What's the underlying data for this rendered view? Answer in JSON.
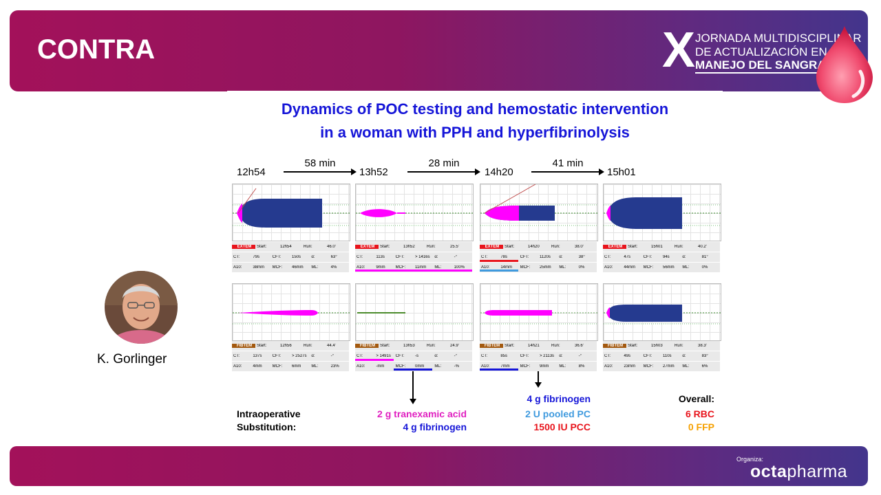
{
  "header": {
    "title": "CONTRA"
  },
  "event_logo": {
    "numeral": "X",
    "line1": "JORNADA MULTIDISCIPLINAR",
    "line2": "DE ACTUALIZACIÓN EN EL",
    "line3": "MANEJO DEL SANGRADO"
  },
  "speaker": {
    "name": "K. Gorlinger"
  },
  "sponsor": {
    "organiza": "Organiza:",
    "brand_bold": "octa",
    "brand_light": "pharma"
  },
  "figure": {
    "title_line1": "Dynamics of POC testing and hemostatic intervention",
    "title_line2": "in a woman with PPH and hyperfibrinolysis",
    "times": [
      "12h54",
      "13h52",
      "14h20",
      "15h01"
    ],
    "intervals": [
      "58 min",
      "28 min",
      "41 min"
    ],
    "extem": [
      {
        "tag": "EXTEM",
        "start": "Start:",
        "start_v": "12h54",
        "run": "Run:",
        "run_v": "46.0'",
        "ct": "CT:",
        "ct_v": "79s",
        "cft": "CFT:",
        "cft_v": "150s",
        "alpha": "α:",
        "alpha_v": "63°",
        "a10": "A10:",
        "a10_v": "38mm",
        "mcf": "MCF:",
        "mcf_v": "46mm",
        "ml": "ML:",
        "ml_v": "4%"
      },
      {
        "tag": "EXTEM",
        "start": "Start:",
        "start_v": "13h52",
        "run": "Run:",
        "run_v": "25.5'",
        "ct": "CT:",
        "ct_v": "113s",
        "cft": "CFT:",
        "cft_v": "> 1416s",
        "alpha": "α:",
        "alpha_v": "-°",
        "a10": "A10:",
        "a10_v": "9mm",
        "mcf": "MCF:",
        "mcf_v": "11mm",
        "ml": "ML:",
        "ml_v": "100%"
      },
      {
        "tag": "EXTEM",
        "start": "Start:",
        "start_v": "14h20",
        "run": "Run:",
        "run_v": "38.0'",
        "ct": "CT:",
        "ct_v": "78s",
        "cft": "CFT:",
        "cft_v": "1120s",
        "alpha": "α:",
        "alpha_v": "38°",
        "a10": "A10:",
        "a10_v": "14mm",
        "mcf": "MCF:",
        "mcf_v": "25mm",
        "ml": "ML:",
        "ml_v": "0%"
      },
      {
        "tag": "EXTEM",
        "start": "Start:",
        "start_v": "15h01",
        "run": "Run:",
        "run_v": "40.2'",
        "ct": "CT:",
        "ct_v": "47s",
        "cft": "CFT:",
        "cft_v": "94s",
        "alpha": "α:",
        "alpha_v": "81°",
        "a10": "A10:",
        "a10_v": "44mm",
        "mcf": "MCF:",
        "mcf_v": "56mm",
        "ml": "ML:",
        "ml_v": "0%"
      }
    ],
    "fibtem": [
      {
        "tag": "FIBTEM",
        "start": "Start:",
        "start_v": "12h56",
        "run": "Run:",
        "run_v": "44.4'",
        "ct": "CT:",
        "ct_v": "137s",
        "cft": "CFT:",
        "cft_v": "> 2527s",
        "alpha": "α:",
        "alpha_v": "-°",
        "a10": "A10:",
        "a10_v": "4mm",
        "mcf": "MCF:",
        "mcf_v": "6mm",
        "ml": "ML:",
        "ml_v": "23%"
      },
      {
        "tag": "FIBTEM",
        "start": "Start:",
        "start_v": "13h53",
        "run": "Run:",
        "run_v": "24.9'",
        "ct": "CT:",
        "ct_v": "> 1491s",
        "cft": "CFT:",
        "cft_v": "-s",
        "alpha": "α:",
        "alpha_v": "-°",
        "a10": "A10:",
        "a10_v": "-mm",
        "mcf": "MCF:",
        "mcf_v": "0mm",
        "ml": "ML:",
        "ml_v": "-%"
      },
      {
        "tag": "FIBTEM",
        "start": "Start:",
        "start_v": "14h21",
        "run": "Run:",
        "run_v": "36.6'",
        "ct": "CT:",
        "ct_v": "85s",
        "cft": "CFT:",
        "cft_v": "> 2113s",
        "alpha": "α:",
        "alpha_v": "-°",
        "a10": "A10:",
        "a10_v": "7mm",
        "mcf": "MCF:",
        "mcf_v": "9mm",
        "ml": "ML:",
        "ml_v": "8%"
      },
      {
        "tag": "FIBTEM",
        "start": "Start:",
        "start_v": "15h03",
        "run": "Run:",
        "run_v": "38.3'",
        "ct": "CT:",
        "ct_v": "49s",
        "cft": "CFT:",
        "cft_v": "110s",
        "alpha": "α:",
        "alpha_v": "83°",
        "a10": "A10:",
        "a10_v": "23mm",
        "mcf": "MCF:",
        "mcf_v": "27mm",
        "ml": "ML:",
        "ml_v": "6%"
      }
    ],
    "intraop_line1": "Intraoperative",
    "intraop_line2": "Substitution:",
    "dose1_line1": "2 g tranexamic acid",
    "dose1_line2": "4 g fibrinogen",
    "dose2_line1": "4 g fibrinogen",
    "dose2_line2": "2 U pooled PC",
    "dose2_line3": "1500 IU PCC",
    "overall_label": "Overall:",
    "overall_rbc": "6 RBC",
    "overall_ffp": "0 FFP"
  },
  "colors": {
    "extem_tag": "#e8141c",
    "fibtem_tag": "#a3590f",
    "trace_blue": "#253a8f",
    "trace_magenta": "#ff00ff",
    "title_blue": "#1515d8",
    "pc_blue": "#3f9ade",
    "pcc_red": "#e8141c",
    "ffp_orange": "#f5a000",
    "rbc_red": "#e8141c"
  }
}
